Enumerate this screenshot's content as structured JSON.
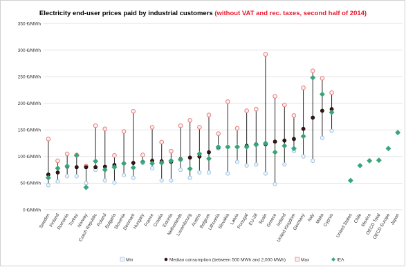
{
  "chart_data": {
    "type": "scatter",
    "title": "Electricity end-user prices paid by industrial customers ",
    "subtitle": "(without VAT and rec. taxes, second half of 2014)",
    "y_ticks": [
      "0 €/MWh",
      "50 €/MWh",
      "100 €/MWh",
      "150 €/MWh",
      "200 €/MWh",
      "250 €/MWh",
      "300 €/MWh",
      "350 €/MWh"
    ],
    "ylim": [
      0,
      350
    ],
    "grid": true,
    "legend_position": "bottom",
    "categories": [
      "Sweden",
      "Finland",
      "Romania",
      "Turkey",
      "Norway",
      "Czech Republic",
      "Poland",
      "Bulgaria",
      "Slovenia",
      "Denmark",
      "Hungary",
      "France",
      "Croatia",
      "Estonia",
      "Netherlands",
      "Luxembourg",
      "Austria",
      "Belgium",
      "Lithuania",
      "Slovakia",
      "Latvia",
      "Portugal",
      "EU-28",
      "Spain",
      "Greece",
      "Ireland",
      "United Kingdom",
      "Germany",
      "Italy",
      "Malta",
      "Cyprus",
      "",
      "United States",
      "Chile",
      "Mexico",
      "OECD Total",
      "OECD Europe",
      "Japan"
    ],
    "series": [
      {
        "name": "Min",
        "color": "#9dc3e6",
        "values": [
          46,
          53,
          63,
          63,
          50,
          75,
          55,
          51,
          65,
          60,
          88,
          78,
          55,
          55,
          75,
          60,
          70,
          70,
          115,
          68,
          90,
          83,
          85,
          68,
          48,
          85,
          110,
          100,
          92,
          135,
          148,
          null,
          null,
          null,
          null,
          null,
          null,
          null
        ]
      },
      {
        "name": "Median consumption (between 500 MWh and 2,000 MWh)",
        "color": "#000000",
        "values": [
          66,
          70,
          81,
          80,
          80,
          80,
          81,
          84,
          87,
          88,
          90,
          92,
          91,
          90,
          95,
          98,
          100,
          108,
          117,
          118,
          118,
          120,
          123,
          123,
          128,
          130,
          133,
          152,
          173,
          186,
          189,
          null,
          null,
          null,
          null,
          null,
          null,
          null
        ]
      },
      {
        "name": "Max",
        "color": "#f4a6a6",
        "values": [
          133,
          92,
          105,
          103,
          82,
          158,
          152,
          102,
          147,
          185,
          103,
          155,
          127,
          110,
          158,
          168,
          155,
          178,
          143,
          203,
          153,
          186,
          189,
          292,
          213,
          197,
          177,
          229,
          261,
          247,
          220,
          null,
          null,
          null,
          null,
          null,
          null,
          null
        ]
      },
      {
        "name": "IEA",
        "color": "#3aa57a",
        "values": [
          60,
          78,
          82,
          102,
          42,
          91,
          75,
          80,
          87,
          79,
          90,
          87,
          88,
          92,
          94,
          77,
          105,
          96,
          118,
          118,
          118,
          118,
          122,
          125,
          108,
          120,
          115,
          138,
          248,
          217,
          183,
          null,
          55,
          83,
          92,
          93,
          115,
          145
        ]
      }
    ]
  }
}
